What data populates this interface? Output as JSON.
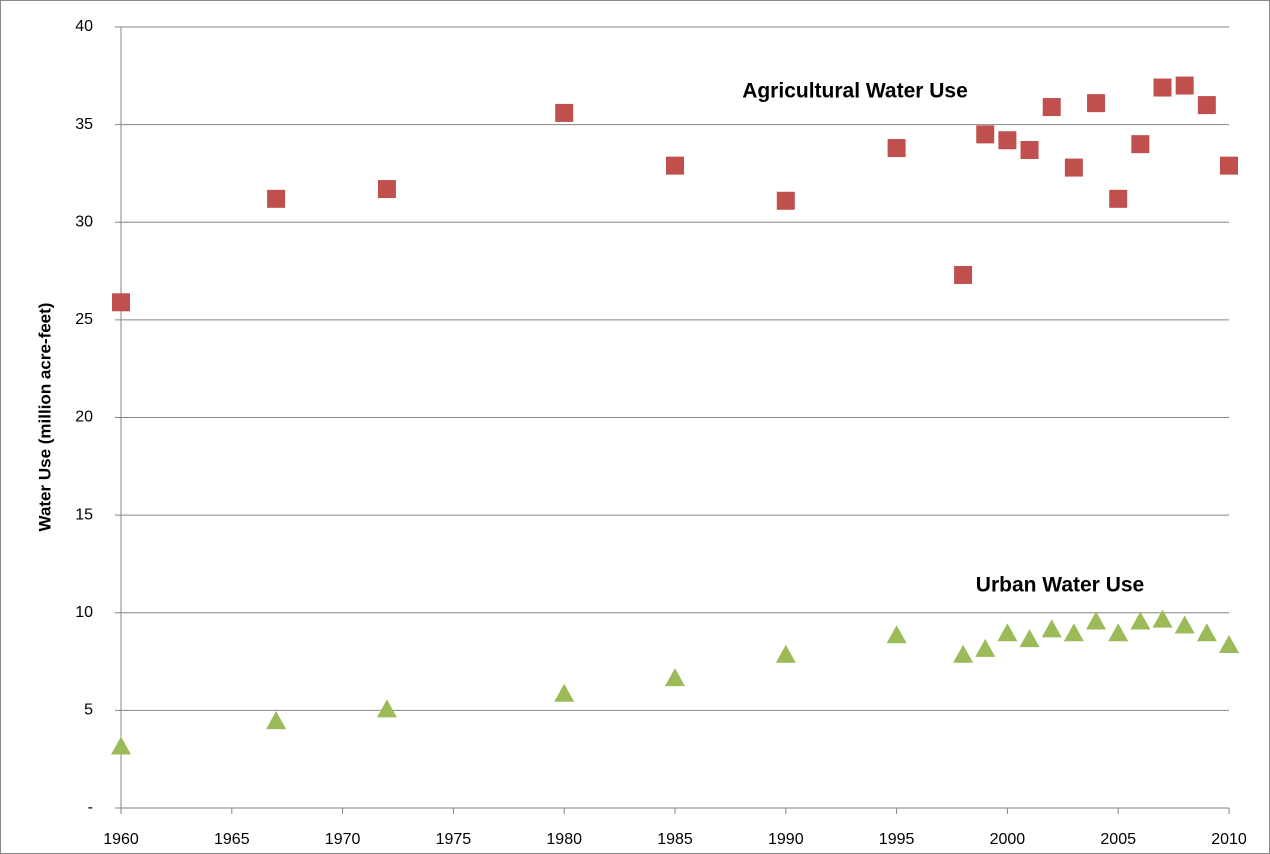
{
  "chart_data": {
    "type": "scatter",
    "y_label": "Water Use (million acre-feet)",
    "xlim": [
      1960,
      2010
    ],
    "xticks": [
      1960,
      1965,
      1970,
      1975,
      1980,
      1985,
      1990,
      1995,
      2000,
      2005,
      2010
    ],
    "ylim": [
      0,
      40
    ],
    "yticks": [
      {
        "value": 0,
        "label": "-"
      },
      5,
      10,
      15,
      20,
      25,
      30,
      35,
      40
    ],
    "grid": true,
    "series": [
      {
        "name": "Agricultural Water Use",
        "color": "#c0504d",
        "marker": "square",
        "x": [
          1960,
          1967,
          1972,
          1980,
          1985,
          1990,
          1995,
          1998,
          1999,
          2000,
          2001,
          2002,
          2003,
          2004,
          2005,
          2006,
          2007,
          2008,
          2009,
          2010
        ],
        "values": [
          25.9,
          31.2,
          31.7,
          35.6,
          32.9,
          31.1,
          33.8,
          27.3,
          34.5,
          34.2,
          33.7,
          35.9,
          32.8,
          36.1,
          31.2,
          34.0,
          36.9,
          37.0,
          36.0,
          32.9
        ]
      },
      {
        "name": "Urban Water Use",
        "color": "#9bbb59",
        "marker": "triangle",
        "x": [
          1960,
          1967,
          1972,
          1980,
          1985,
          1990,
          1995,
          1998,
          1999,
          2000,
          2001,
          2002,
          2003,
          2004,
          2005,
          2006,
          2007,
          2008,
          2009,
          2010
        ],
        "values": [
          3.2,
          4.5,
          5.1,
          5.9,
          6.7,
          7.9,
          8.9,
          7.9,
          8.2,
          9.0,
          8.7,
          9.2,
          9.0,
          9.6,
          9.0,
          9.6,
          9.7,
          9.4,
          9.0,
          8.4
        ]
      }
    ]
  }
}
